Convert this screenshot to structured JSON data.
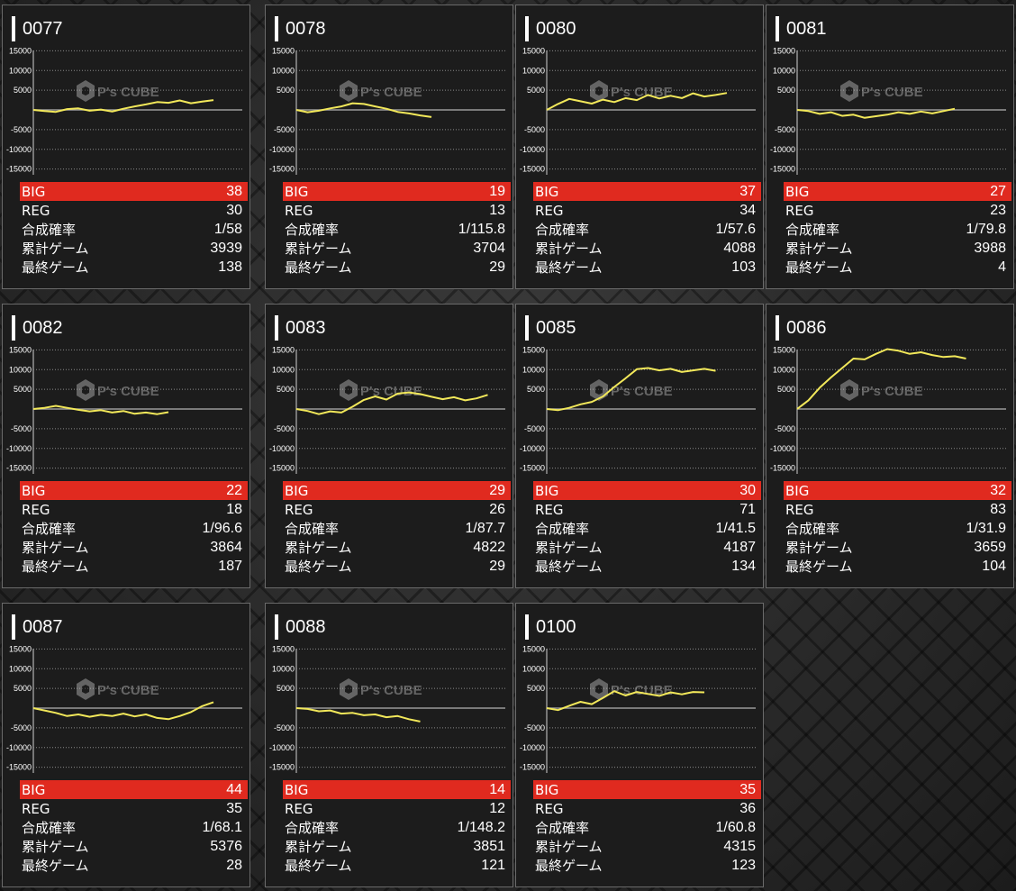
{
  "labels": {
    "big": "BIG",
    "reg": "REG",
    "rate": "合成確率",
    "total_games": "累計ゲーム",
    "last_games": "最終ゲーム"
  },
  "watermark": "P's CUBE",
  "colors": {
    "line": "#f2e85a",
    "big_bar": "#e02a1f",
    "background": "#1c1c1c"
  },
  "chart_data": [
    {
      "type": "line",
      "title": "0077",
      "y_ticks": [
        15000,
        10000,
        5000,
        -5000,
        -10000,
        -15000
      ],
      "ylim": [
        -16000,
        16000
      ],
      "values": [
        0,
        -300,
        -500,
        200,
        400,
        -200,
        100,
        -400,
        300,
        900,
        1400,
        2000,
        1800,
        2400,
        1700,
        2100,
        2500
      ],
      "stats": {
        "big": "38",
        "reg": "30",
        "rate": "1/58",
        "total": "3939",
        "last": "138"
      }
    },
    {
      "type": "line",
      "title": "0078",
      "y_ticks": [
        15000,
        10000,
        5000,
        -5000,
        -10000,
        -15000
      ],
      "ylim": [
        -16000,
        16000
      ],
      "values": [
        0,
        -600,
        -200,
        400,
        900,
        1700,
        1500,
        900,
        300,
        -500,
        -900,
        -1400,
        -1800
      ],
      "stats": {
        "big": "19",
        "reg": "13",
        "rate": "1/115.8",
        "total": "3704",
        "last": "29"
      }
    },
    {
      "type": "line",
      "title": "0080",
      "y_ticks": [
        15000,
        10000,
        5000,
        -5000,
        -10000,
        -15000
      ],
      "ylim": [
        -16000,
        16000
      ],
      "values": [
        0,
        1500,
        2800,
        2200,
        1600,
        2600,
        2000,
        3000,
        2500,
        3800,
        2900,
        3600,
        3000,
        4200,
        3400,
        3800,
        4300
      ],
      "stats": {
        "big": "37",
        "reg": "34",
        "rate": "1/57.6",
        "total": "4088",
        "last": "103"
      }
    },
    {
      "type": "line",
      "title": "0081",
      "y_ticks": [
        15000,
        10000,
        5000,
        -5000,
        -10000,
        -15000
      ],
      "ylim": [
        -16000,
        16000
      ],
      "values": [
        0,
        -300,
        -1000,
        -600,
        -1500,
        -1200,
        -2000,
        -1600,
        -1200,
        -600,
        -1000,
        -400,
        -900,
        -300,
        300
      ],
      "stats": {
        "big": "27",
        "reg": "23",
        "rate": "1/79.8",
        "total": "3988",
        "last": "4"
      }
    },
    {
      "type": "line",
      "title": "0082",
      "y_ticks": [
        15000,
        10000,
        5000,
        -5000,
        -10000,
        -15000
      ],
      "ylim": [
        -16000,
        16000
      ],
      "values": [
        0,
        300,
        800,
        300,
        -200,
        -600,
        -300,
        -900,
        -500,
        -1200,
        -900,
        -1300,
        -800
      ],
      "stats": {
        "big": "22",
        "reg": "18",
        "rate": "1/96.6",
        "total": "3864",
        "last": "187"
      }
    },
    {
      "type": "line",
      "title": "0083",
      "y_ticks": [
        15000,
        10000,
        5000,
        -5000,
        -10000,
        -15000
      ],
      "ylim": [
        -16000,
        16000
      ],
      "values": [
        0,
        -500,
        -1300,
        -600,
        -900,
        600,
        2300,
        3200,
        2400,
        3900,
        4200,
        3800,
        3100,
        2500,
        3000,
        2200,
        2700,
        3600
      ],
      "stats": {
        "big": "29",
        "reg": "26",
        "rate": "1/87.7",
        "total": "4822",
        "last": "29"
      }
    },
    {
      "type": "line",
      "title": "0085",
      "y_ticks": [
        15000,
        10000,
        5000,
        -5000,
        -10000,
        -15000
      ],
      "ylim": [
        -16000,
        16000
      ],
      "values": [
        0,
        -300,
        300,
        1200,
        1800,
        3200,
        5600,
        7800,
        10100,
        10400,
        9800,
        10200,
        9400,
        9800,
        10200,
        9700
      ],
      "stats": {
        "big": "30",
        "reg": "71",
        "rate": "1/41.5",
        "total": "4187",
        "last": "134"
      }
    },
    {
      "type": "line",
      "title": "0086",
      "y_ticks": [
        15000,
        10000,
        5000,
        -5000,
        -10000,
        -15000
      ],
      "ylim": [
        -16000,
        16000
      ],
      "values": [
        0,
        2200,
        5400,
        8000,
        10400,
        12800,
        12600,
        14000,
        15200,
        14800,
        14000,
        14400,
        13700,
        13200,
        13400,
        12800
      ],
      "stats": {
        "big": "32",
        "reg": "83",
        "rate": "1/31.9",
        "total": "3659",
        "last": "104"
      }
    },
    {
      "type": "line",
      "title": "0087",
      "y_ticks": [
        15000,
        10000,
        5000,
        -5000,
        -10000,
        -15000
      ],
      "ylim": [
        -16000,
        16000
      ],
      "values": [
        0,
        -600,
        -1200,
        -2000,
        -1600,
        -2200,
        -1700,
        -2000,
        -1400,
        -2100,
        -1600,
        -2500,
        -2800,
        -2000,
        -1000,
        500,
        1500
      ],
      "stats": {
        "big": "44",
        "reg": "35",
        "rate": "1/68.1",
        "total": "5376",
        "last": "28"
      }
    },
    {
      "type": "line",
      "title": "0088",
      "y_ticks": [
        15000,
        10000,
        5000,
        -5000,
        -10000,
        -15000
      ],
      "ylim": [
        -16000,
        16000
      ],
      "values": [
        0,
        -200,
        -800,
        -600,
        -1400,
        -1200,
        -1800,
        -1600,
        -2300,
        -2000,
        -2800,
        -3400
      ],
      "stats": {
        "big": "14",
        "reg": "12",
        "rate": "1/148.2",
        "total": "3851",
        "last": "121"
      }
    },
    {
      "type": "line",
      "title": "0100",
      "y_ticks": [
        15000,
        10000,
        5000,
        -5000,
        -10000,
        -15000
      ],
      "ylim": [
        -16000,
        16000
      ],
      "values": [
        0,
        -500,
        600,
        1600,
        1000,
        2600,
        4300,
        3200,
        4100,
        3600,
        3100,
        4000,
        3500,
        4100,
        4000
      ],
      "stats": {
        "big": "35",
        "reg": "36",
        "rate": "1/60.8",
        "total": "4315",
        "last": "123"
      }
    }
  ]
}
